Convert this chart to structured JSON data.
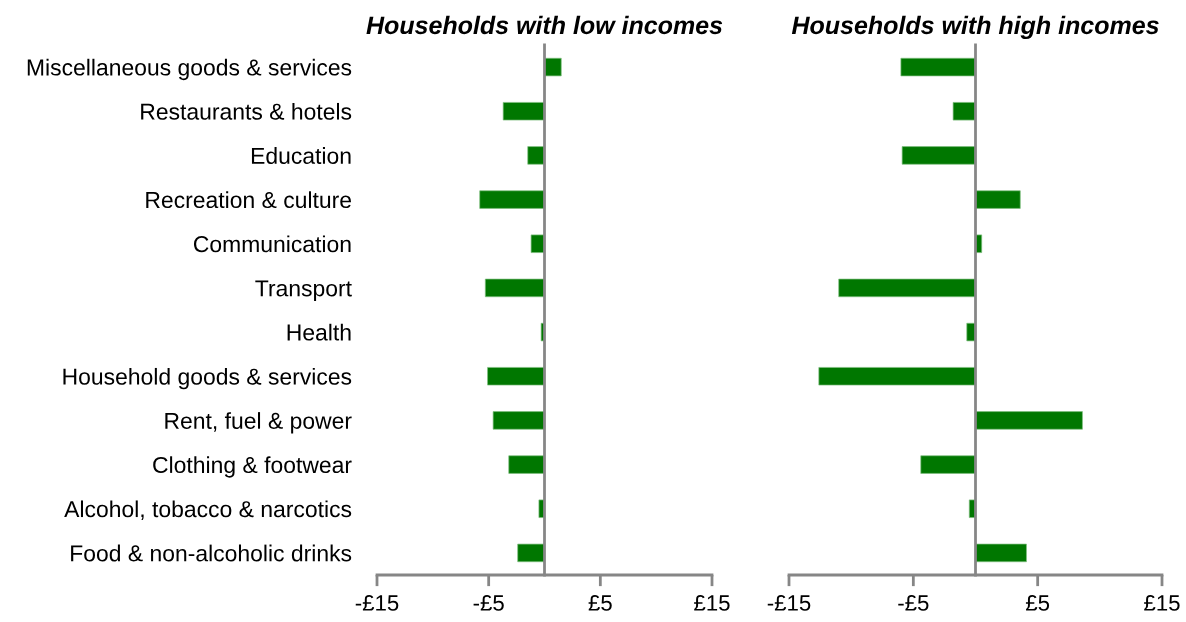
{
  "chart_data": [
    {
      "type": "bar",
      "orientation": "horizontal",
      "title": "Households with low incomes",
      "categories": [
        "Miscellaneous goods & services",
        "Restaurants & hotels",
        "Education",
        "Recreation & culture",
        "Communication",
        "Transport",
        "Health",
        "Household goods & services",
        "Rent, fuel & power",
        "Clothing & footwear",
        "Alcohol, tobacco & narcotics",
        "Food & non-alcoholic drinks"
      ],
      "values": [
        1.5,
        -3.7,
        -1.5,
        -5.8,
        -1.2,
        -5.3,
        -0.3,
        -5.1,
        -4.6,
        -3.2,
        -0.5,
        -2.4
      ],
      "color": "#007700",
      "xlim": [
        -15,
        15
      ],
      "xticks": [
        {
          "value": -15,
          "label": "-£15"
        },
        {
          "value": -5,
          "label": "-£5"
        },
        {
          "value": 5,
          "label": "£5"
        },
        {
          "value": 15,
          "label": "£15"
        }
      ],
      "grid": false,
      "legend": false
    },
    {
      "type": "bar",
      "orientation": "horizontal",
      "title": "Households with high incomes",
      "categories": [
        null,
        null,
        null,
        null,
        null,
        null,
        null,
        null,
        null,
        null,
        null,
        null
      ],
      "values": [
        -6.0,
        -1.8,
        -5.9,
        3.6,
        0.5,
        -11.0,
        -0.7,
        -12.6,
        8.6,
        -4.4,
        -0.5,
        4.1
      ],
      "color": "#007700",
      "xlim": [
        -15,
        15
      ],
      "xticks": [
        {
          "value": -15,
          "label": "-£15"
        },
        {
          "value": -5,
          "label": "-£5"
        },
        {
          "value": 5,
          "label": "£5"
        },
        {
          "value": 15,
          "label": "£15"
        }
      ],
      "grid": false,
      "legend": false
    }
  ]
}
